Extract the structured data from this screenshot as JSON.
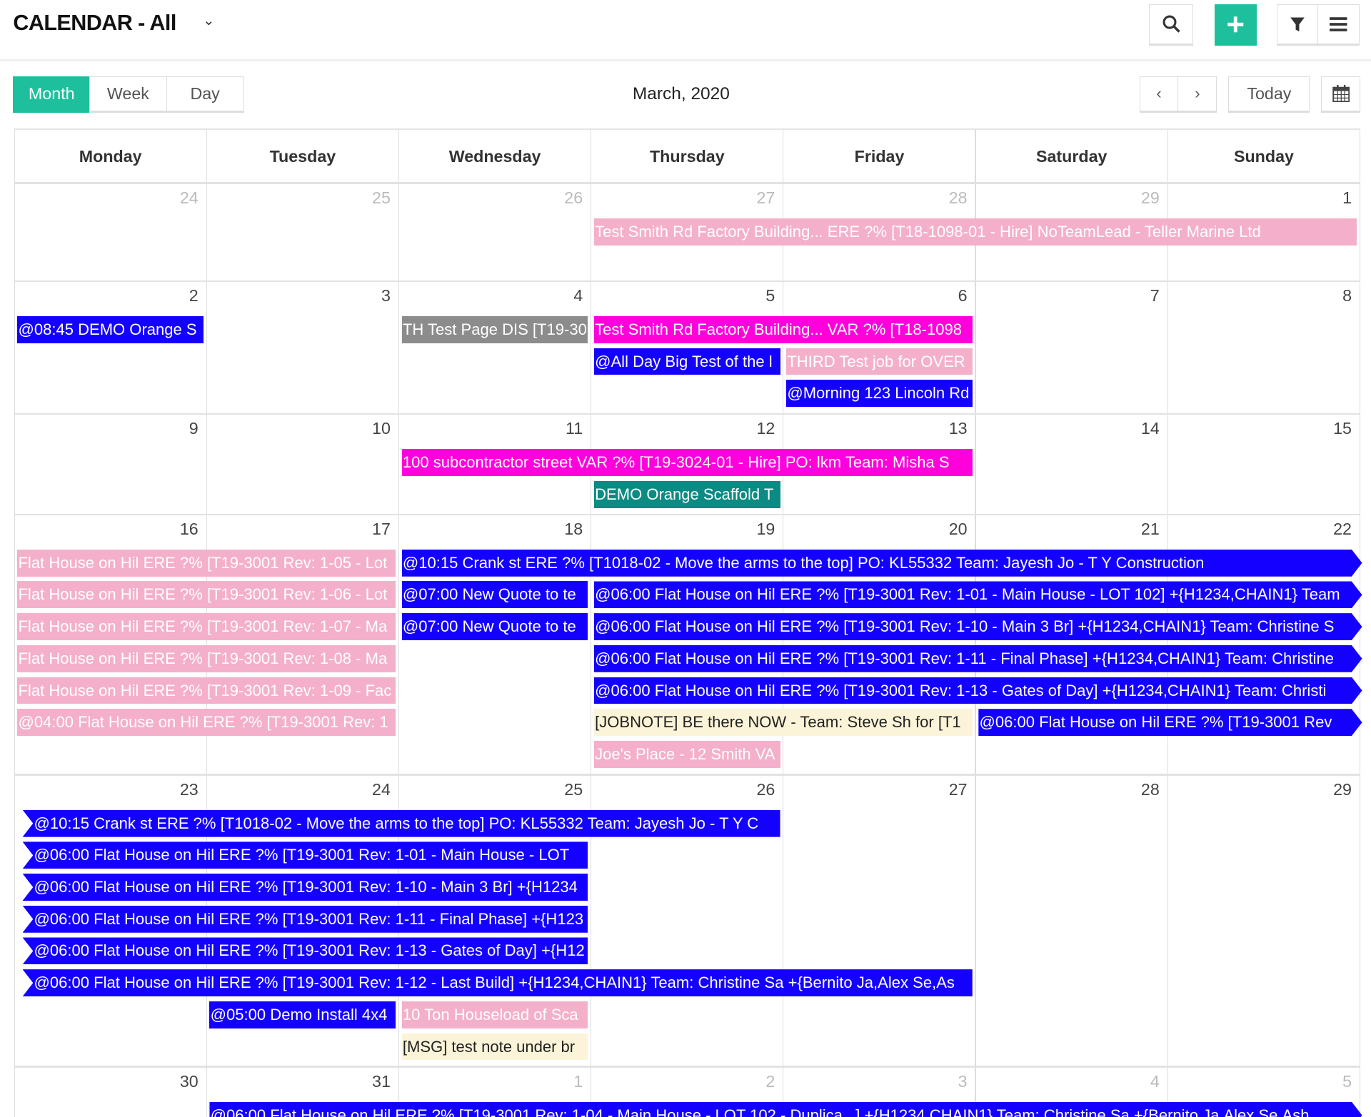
{
  "header": {
    "title": "CALENDAR - All",
    "icons": {
      "search": "search-icon",
      "add": "plus-icon",
      "filter": "filter-icon",
      "menu": "hamburger-icon"
    },
    "accent": "#1dbf9d"
  },
  "toolbar": {
    "views": [
      "Month",
      "Week",
      "Day"
    ],
    "active_view": "Month",
    "month_title": "March, 2020",
    "today_label": "Today"
  },
  "day_names": [
    "Monday",
    "Tuesday",
    "Wednesday",
    "Thursday",
    "Friday",
    "Saturday",
    "Sunday"
  ],
  "colors": {
    "blue": "#1400ff",
    "pink": "#f4b0ca",
    "magenta": "#ff00dc",
    "gray": "#8c8c8c",
    "teal": "#0b8b83",
    "cream": "#fbf4d8"
  },
  "weeks": [
    {
      "days": [
        24,
        25,
        26,
        27,
        28,
        29,
        1
      ],
      "other": [
        0,
        1,
        2,
        3,
        4,
        5
      ],
      "events": [
        {
          "start": 3,
          "days": 4,
          "color": "pink",
          "text": "Test Smith Rd Factory Building... ERE ?% [T18-1098-01 - Hire] NoTeamLead - Teller Marine Ltd"
        }
      ]
    },
    {
      "days": [
        2,
        3,
        4,
        5,
        6,
        7,
        8
      ],
      "other": [],
      "events": [
        {
          "start": 0,
          "days": 1,
          "color": "blue",
          "text": "@08:45 DEMO Orange S"
        },
        {
          "start": 2,
          "days": 1,
          "color": "gray",
          "text": "TH Test Page DIS [T19-30"
        },
        {
          "start": 3,
          "days": 2,
          "color": "magenta",
          "text": "Test Smith Rd Factory Building... VAR ?% [T18-1098"
        },
        {
          "start": 3,
          "days": 1,
          "color": "blue",
          "text": "@All Day Big Test of the l"
        },
        {
          "start": 4,
          "days": 1,
          "color": "pink",
          "text": "THIRD Test job for OVER"
        },
        {
          "start": 4,
          "days": 1,
          "color": "blue",
          "text": "@Morning 123 Lincoln Rd"
        }
      ]
    },
    {
      "days": [
        9,
        10,
        11,
        12,
        13,
        14,
        15
      ],
      "other": [],
      "events": [
        {
          "start": 2,
          "days": 3,
          "color": "magenta",
          "text": "100 subcontractor street VAR ?% [T19-3024-01 - Hire] PO: lkm Team: Misha S"
        },
        {
          "start": 3,
          "days": 1,
          "color": "teal",
          "text": "DEMO Orange Scaffold T"
        }
      ]
    },
    {
      "days": [
        16,
        17,
        18,
        19,
        20,
        21,
        22
      ],
      "other": [],
      "events": [
        {
          "start": 0,
          "days": 2,
          "color": "pink",
          "text": "Flat House on Hil ERE ?% [T19-3001 Rev: 1-05 - Lot"
        },
        {
          "start": 2,
          "days": 5,
          "color": "blue",
          "cont_right": true,
          "text": "@10:15 Crank st ERE ?% [T1018-02 - Move the arms to the top] PO: KL55332 Team: Jayesh Jo - T Y Construction"
        },
        {
          "start": 0,
          "days": 2,
          "color": "pink",
          "text": "Flat House on Hil ERE ?% [T19-3001 Rev: 1-06 - Lot"
        },
        {
          "start": 2,
          "days": 1,
          "color": "blue",
          "text": "@07:00 New Quote to te"
        },
        {
          "start": 3,
          "days": 4,
          "color": "blue",
          "cont_right": true,
          "text": "@06:00 Flat House on Hil ERE ?% [T19-3001 Rev: 1-01 - Main House - LOT 102] +{H1234,CHAIN1} Team"
        },
        {
          "start": 0,
          "days": 2,
          "color": "pink",
          "text": "Flat House on Hil ERE ?% [T19-3001 Rev: 1-07 - Ma"
        },
        {
          "start": 2,
          "days": 1,
          "color": "blue",
          "text": "@07:00 New Quote to te"
        },
        {
          "start": 3,
          "days": 4,
          "color": "blue",
          "cont_right": true,
          "text": "@06:00 Flat House on Hil ERE ?% [T19-3001 Rev: 1-10 - Main 3 Br] +{H1234,CHAIN1} Team: Christine S"
        },
        {
          "start": 0,
          "days": 2,
          "color": "pink",
          "text": "Flat House on Hil ERE ?% [T19-3001 Rev: 1-08 - Ma"
        },
        {
          "start": 3,
          "days": 4,
          "color": "blue",
          "cont_right": true,
          "text": "@06:00 Flat House on Hil ERE ?% [T19-3001 Rev: 1-11 - Final Phase] +{H1234,CHAIN1} Team: Christine"
        },
        {
          "start": 0,
          "days": 2,
          "color": "pink",
          "text": "Flat House on Hil ERE ?% [T19-3001 Rev: 1-09 - Fac"
        },
        {
          "start": 3,
          "days": 4,
          "color": "blue",
          "cont_right": true,
          "text": "@06:00 Flat House on Hil ERE ?% [T19-3001 Rev: 1-13 - Gates of Day] +{H1234,CHAIN1} Team: Christi"
        },
        {
          "start": 0,
          "days": 2,
          "color": "pink",
          "text": "@04:00 Flat House on Hil ERE ?% [T19-3001 Rev: 1"
        },
        {
          "start": 3,
          "days": 2,
          "color": "cream",
          "text": "[JOBNOTE] BE there NOW - Team: Steve Sh for [T1"
        },
        {
          "start": 5,
          "days": 2,
          "color": "blue",
          "cont_right": true,
          "text": "@06:00 Flat House on Hil ERE ?% [T19-3001 Rev"
        },
        {
          "start": 3,
          "days": 1,
          "color": "pink",
          "text": "Joe's Place - 12 Smith VA"
        }
      ]
    },
    {
      "days": [
        23,
        24,
        25,
        26,
        27,
        28,
        29
      ],
      "other": [],
      "events": [
        {
          "start": 0,
          "days": 4,
          "color": "blue",
          "cont_left": true,
          "text": "@10:15 Crank st ERE ?% [T1018-02 - Move the arms to the top] PO: KL55332 Team: Jayesh Jo - T Y C"
        },
        {
          "start": 0,
          "days": 3,
          "color": "blue",
          "cont_left": true,
          "text": "@06:00 Flat House on Hil ERE ?% [T19-3001 Rev: 1-01 - Main House - LOT"
        },
        {
          "start": 0,
          "days": 3,
          "color": "blue",
          "cont_left": true,
          "text": "@06:00 Flat House on Hil ERE ?% [T19-3001 Rev: 1-10 - Main 3 Br] +{H1234"
        },
        {
          "start": 0,
          "days": 3,
          "color": "blue",
          "cont_left": true,
          "text": "@06:00 Flat House on Hil ERE ?% [T19-3001 Rev: 1-11 - Final Phase] +{H123"
        },
        {
          "start": 0,
          "days": 3,
          "color": "blue",
          "cont_left": true,
          "text": "@06:00 Flat House on Hil ERE ?% [T19-3001 Rev: 1-13 - Gates of Day] +{H12"
        },
        {
          "start": 0,
          "days": 5,
          "color": "blue",
          "cont_left": true,
          "text": "@06:00 Flat House on Hil ERE ?% [T19-3001 Rev: 1-12 - Last Build] +{H1234,CHAIN1} Team: Christine Sa +{Bernito Ja,Alex Se,As"
        },
        {
          "start": 1,
          "days": 1,
          "color": "blue",
          "text": "@05:00 Demo Install 4x4"
        },
        {
          "start": 2,
          "days": 1,
          "color": "pink",
          "text": "10 Ton Houseload of Sca"
        },
        {
          "start": 2,
          "days": 1,
          "color": "cream",
          "text": "[MSG] test note under br"
        }
      ]
    },
    {
      "days": [
        30,
        31,
        1,
        2,
        3,
        4,
        5
      ],
      "other": [
        2,
        3,
        4,
        5,
        6
      ],
      "events": [
        {
          "start": 1,
          "days": 6,
          "color": "blue",
          "cont_right": true,
          "text": "@06:00 Flat House on Hil ERE ?% [T19-3001 Rev: 1-04 - Main House - LOT 102 - Duplica...] +{H1234,CHAIN1} Team: Christine Sa +{Bernito Ja,Alex Se,Ash"
        }
      ]
    }
  ]
}
